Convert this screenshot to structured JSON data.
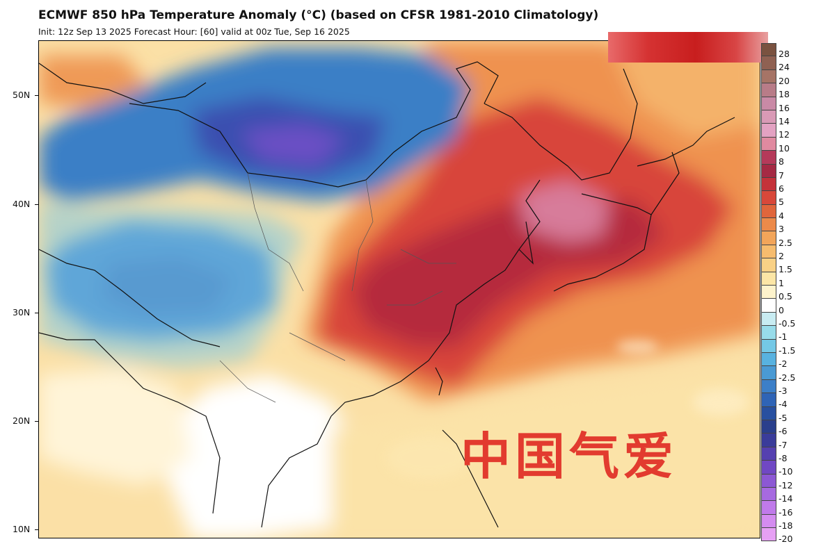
{
  "header": {
    "title": "ECMWF 850 hPa Temperature Anomaly (°C) (based on CFSR 1981-2010 Climatology)",
    "subtitle": "Init: 12z Sep 13 2025   Forecast Hour: [60]   valid at 00z Tue, Sep 16 2025"
  },
  "map": {
    "latitude_labels": [
      "50N",
      "40N",
      "30N",
      "20N",
      "10N"
    ],
    "watermark": "中国气爱"
  },
  "colorbar": {
    "levels": [
      "28",
      "24",
      "20",
      "18",
      "16",
      "14",
      "12",
      "10",
      "8",
      "7",
      "6",
      "5",
      "4",
      "3",
      "2.5",
      "2",
      "1.5",
      "1",
      "0.5",
      "0",
      "-0.5",
      "-1",
      "-1.5",
      "-2",
      "-2.5",
      "-3",
      "-4",
      "-5",
      "-6",
      "-7",
      "-8",
      "-10",
      "-12",
      "-14",
      "-16",
      "-18",
      "-20"
    ],
    "colors": [
      "#7a5240",
      "#8f6152",
      "#a67466",
      "#b87c88",
      "#c98aa6",
      "#d99ab6",
      "#e3a2c2",
      "#e08aa0",
      "#b53a5a",
      "#a52a44",
      "#c4323a",
      "#d8483a",
      "#e0663c",
      "#ec8a4a",
      "#f2a55a",
      "#f6bc6e",
      "#f9d186",
      "#fce6a6",
      "#fdf3cc",
      "#ffffff",
      "#c8ecf2",
      "#98dcea",
      "#74c8e6",
      "#58b2e0",
      "#4a9ad4",
      "#3c7fc8",
      "#2f64b6",
      "#2850a0",
      "#2a3f8c",
      "#3a3c9a",
      "#5540b0",
      "#7048c4",
      "#8c58d4",
      "#a66ae0",
      "#c07aea",
      "#d48cf0",
      "#e6a0f4"
    ]
  }
}
